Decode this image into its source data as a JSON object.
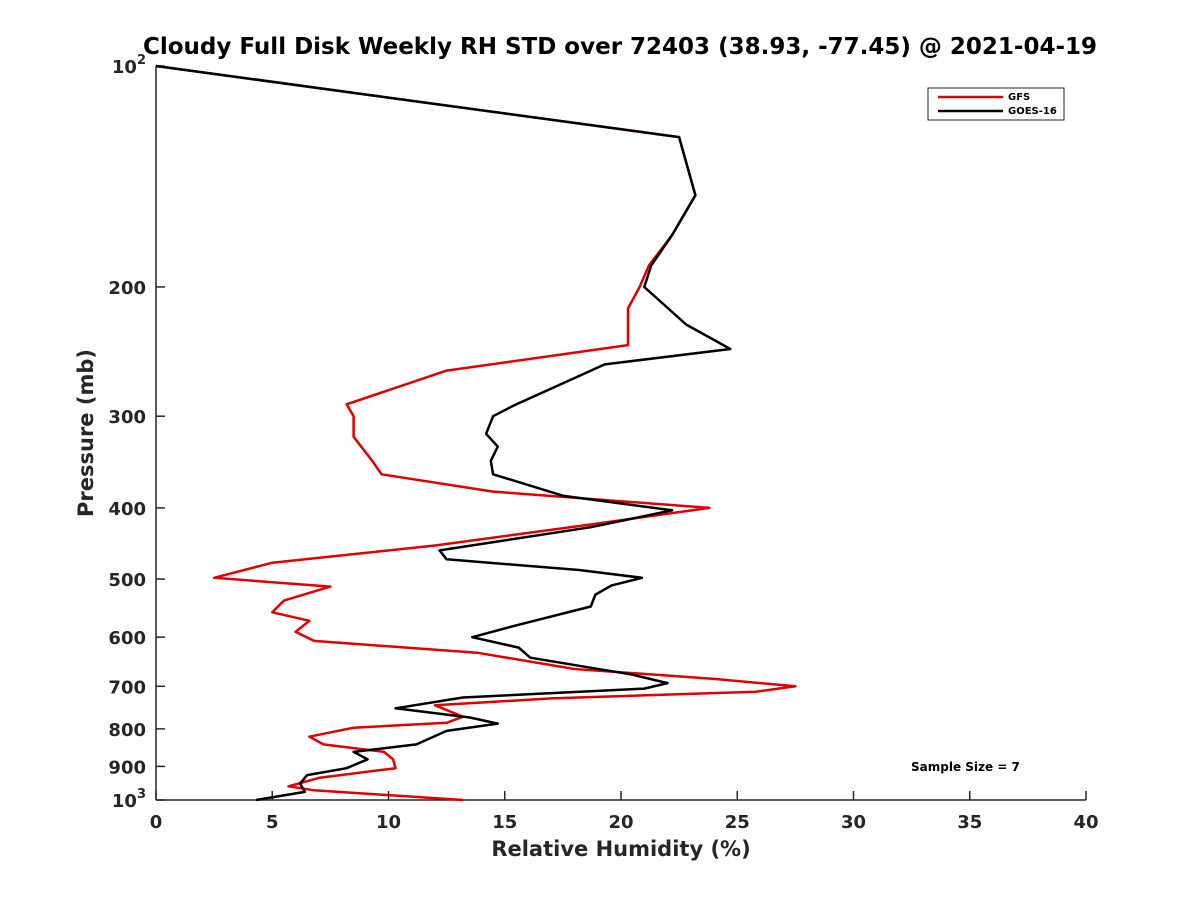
{
  "chart_data": {
    "type": "line",
    "title": "Cloudy Full Disk Weekly RH STD over 72403 (38.93, -77.45) @ 2021-04-19",
    "xlabel": "Relative Humidity (%)",
    "ylabel": "Pressure (mb)",
    "xlim": [
      0,
      40
    ],
    "ylim": [
      100,
      1000
    ],
    "y_scale": "log",
    "y_reversed": true,
    "x_ticks": [
      0,
      5,
      10,
      15,
      20,
      25,
      30,
      35,
      40
    ],
    "x_tick_labels": [
      "0",
      "5",
      "10",
      "15",
      "20",
      "25",
      "30",
      "35",
      "40"
    ],
    "y_ticks": [
      100,
      200,
      300,
      400,
      500,
      600,
      700,
      800,
      900,
      1000
    ],
    "y_tick_labels": [
      {
        "base": "10",
        "exp": "2"
      },
      {
        "base": "200",
        "exp": ""
      },
      {
        "base": "300",
        "exp": ""
      },
      {
        "base": "400",
        "exp": ""
      },
      {
        "base": "500",
        "exp": ""
      },
      {
        "base": "600",
        "exp": ""
      },
      {
        "base": "700",
        "exp": ""
      },
      {
        "base": "800",
        "exp": ""
      },
      {
        "base": "900",
        "exp": ""
      },
      {
        "base": "10",
        "exp": "3"
      }
    ],
    "grid": false,
    "legend_position": "top-right",
    "annotation": "Sample Size = 7",
    "series": [
      {
        "name": "GFS",
        "color": "#e00000",
        "points": [
          [
            0.0,
            100
          ],
          [
            22.5,
            125
          ],
          [
            23.2,
            150
          ],
          [
            22.2,
            170
          ],
          [
            21.2,
            187
          ],
          [
            20.8,
            200
          ],
          [
            20.3,
            214
          ],
          [
            20.3,
            240
          ],
          [
            12.5,
            260
          ],
          [
            8.2,
            289
          ],
          [
            8.5,
            300
          ],
          [
            8.5,
            320
          ],
          [
            9.3,
            345
          ],
          [
            9.7,
            360
          ],
          [
            14.5,
            380
          ],
          [
            23.8,
            400
          ],
          [
            19.0,
            420
          ],
          [
            12.0,
            450
          ],
          [
            5.0,
            475
          ],
          [
            2.5,
            498
          ],
          [
            7.5,
            512
          ],
          [
            5.5,
            535
          ],
          [
            5.0,
            555
          ],
          [
            6.6,
            570
          ],
          [
            6.0,
            590
          ],
          [
            6.8,
            607
          ],
          [
            13.8,
            630
          ],
          [
            18.0,
            663
          ],
          [
            24.0,
            684
          ],
          [
            27.5,
            700
          ],
          [
            25.8,
            712
          ],
          [
            17.0,
            727
          ],
          [
            12.0,
            743
          ],
          [
            13.2,
            770
          ],
          [
            12.5,
            785
          ],
          [
            8.5,
            797
          ],
          [
            6.6,
            820
          ],
          [
            7.2,
            840
          ],
          [
            9.8,
            860
          ],
          [
            10.2,
            880
          ],
          [
            10.3,
            905
          ],
          [
            7.0,
            933
          ],
          [
            5.7,
            958
          ],
          [
            6.8,
            970
          ],
          [
            13.2,
            1000
          ]
        ]
      },
      {
        "name": "GOES-16",
        "color": "#000000",
        "points": [
          [
            0.0,
            100
          ],
          [
            22.5,
            125
          ],
          [
            23.2,
            150
          ],
          [
            22.2,
            170
          ],
          [
            21.3,
            187
          ],
          [
            21.0,
            200
          ],
          [
            22.8,
            225
          ],
          [
            24.7,
            243
          ],
          [
            19.3,
            255
          ],
          [
            15.4,
            290
          ],
          [
            14.5,
            300
          ],
          [
            14.2,
            317
          ],
          [
            14.7,
            330
          ],
          [
            14.4,
            345
          ],
          [
            14.5,
            360
          ],
          [
            17.5,
            385
          ],
          [
            22.2,
            403
          ],
          [
            18.7,
            425
          ],
          [
            12.2,
            457
          ],
          [
            12.5,
            470
          ],
          [
            18.2,
            486
          ],
          [
            20.9,
            498
          ],
          [
            19.6,
            510
          ],
          [
            18.9,
            525
          ],
          [
            18.7,
            545
          ],
          [
            15.5,
            578
          ],
          [
            13.6,
            600
          ],
          [
            15.6,
            620
          ],
          [
            16.1,
            640
          ],
          [
            20.5,
            675
          ],
          [
            22.0,
            693
          ],
          [
            21.0,
            705
          ],
          [
            13.2,
            725
          ],
          [
            10.3,
            750
          ],
          [
            13.5,
            772
          ],
          [
            14.7,
            787
          ],
          [
            12.5,
            805
          ],
          [
            11.2,
            840
          ],
          [
            8.5,
            860
          ],
          [
            9.1,
            880
          ],
          [
            8.2,
            905
          ],
          [
            6.5,
            925
          ],
          [
            6.2,
            950
          ],
          [
            6.4,
            975
          ],
          [
            4.3,
            1000
          ]
        ]
      }
    ]
  }
}
